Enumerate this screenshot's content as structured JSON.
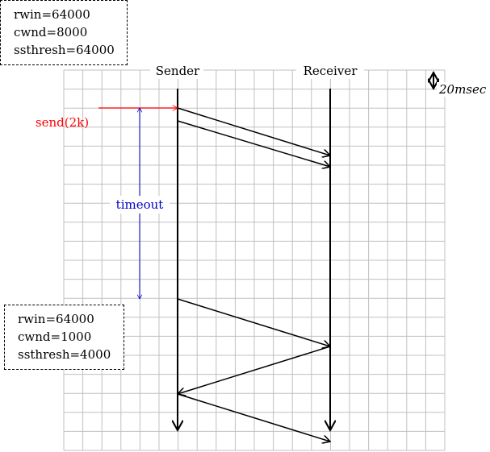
{
  "participants": {
    "sender": "Sender",
    "receiver": "Receiver"
  },
  "scale": {
    "label": "20msec"
  },
  "initial_state": {
    "rwin": "rwin=64000",
    "cwnd": "cwnd=8000",
    "ssthresh": "ssthresh=64000"
  },
  "after_timeout_state": {
    "rwin": "rwin=64000",
    "cwnd": "cwnd=1000",
    "ssthresh": "ssthresh=4000"
  },
  "events": {
    "send": {
      "label": "send(2k)",
      "color": "#ff0000"
    },
    "timeout": {
      "label": "timeout",
      "color": "#0000cc"
    }
  },
  "colors": {
    "grid": "#c0c0c0",
    "lines": "#000000"
  }
}
